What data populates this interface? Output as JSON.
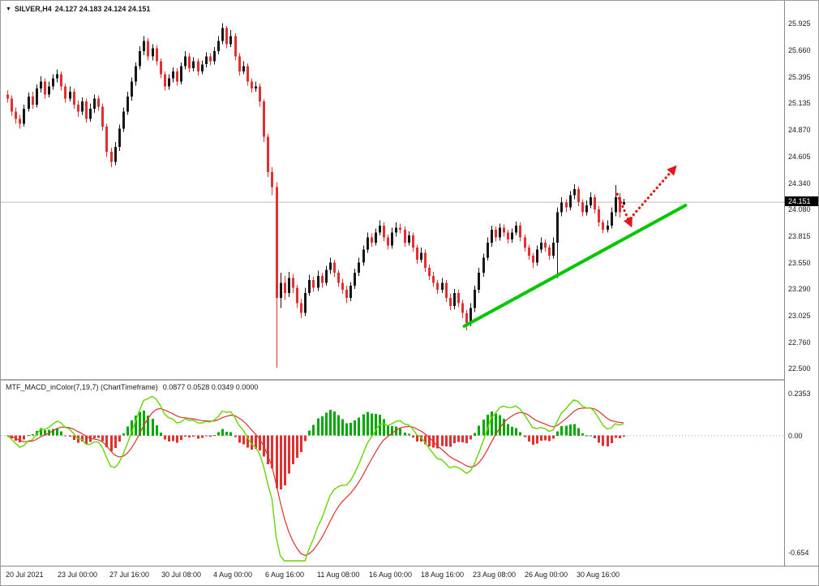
{
  "icons": {
    "dropdown": "▼"
  },
  "colors": {
    "bull": "#161616",
    "bear": "#e03030",
    "trend": "#00c600",
    "arrow": "#e01818",
    "macd_line": "#66d400",
    "signal_line": "#e03030",
    "hist_up": "#00a800",
    "hist_down": "#e03030",
    "current_price_line": "#bdbdbd",
    "tag_bg": "#000000",
    "tag_text": "#ffffff"
  },
  "ui": {
    "quote_header": {
      "symbol": "SILVER,H4",
      "values": "24.127 24.183 24.124 24.151"
    },
    "indicator_header": {
      "title": "MTF_MACD_inColor(7,19,7) (ChartTimeframe)",
      "values": "0.0877 0.0528 0.0349 0.0000"
    },
    "current_price_tag": "24.151"
  },
  "chart_data": [
    {
      "type": "candlestick",
      "title": "SILVER,H4",
      "last_bar_ohlc": {
        "open": 24.127,
        "high": 24.183,
        "low": 24.124,
        "close": 24.151
      },
      "ylim": [
        22.5,
        25.925
      ],
      "yticks": [
        "25.925",
        "25.660",
        "25.395",
        "25.135",
        "24.870",
        "24.605",
        "24.340",
        "24.080",
        "23.815",
        "23.550",
        "23.290",
        "23.025",
        "22.760",
        "22.500"
      ],
      "xticklabels": [
        "20 Jul 2021",
        "23 Jul 00:00",
        "27 Jul 16:00",
        "30 Jul 08:00",
        "4 Aug 00:00",
        "6 Aug 16:00",
        "11 Aug 08:00",
        "16 Aug 00:00",
        "18 Aug 16:00",
        "23 Aug 08:00",
        "26 Aug 00:00",
        "30 Aug 16:00"
      ],
      "ohlc": [
        [
          25.22,
          25.26,
          25.14,
          25.18
        ],
        [
          25.18,
          25.21,
          25.01,
          25.05
        ],
        [
          25.05,
          25.09,
          24.93,
          24.98
        ],
        [
          24.98,
          25.02,
          24.88,
          24.93
        ],
        [
          24.93,
          25.12,
          24.9,
          25.08
        ],
        [
          25.08,
          25.24,
          25.05,
          25.2
        ],
        [
          25.2,
          25.25,
          25.08,
          25.12
        ],
        [
          25.12,
          25.32,
          25.09,
          25.28
        ],
        [
          25.28,
          25.4,
          25.24,
          25.35
        ],
        [
          25.35,
          25.38,
          25.18,
          25.22
        ],
        [
          25.22,
          25.35,
          25.19,
          25.3
        ],
        [
          25.3,
          25.42,
          25.27,
          25.38
        ],
        [
          25.38,
          25.47,
          25.34,
          25.42
        ],
        [
          25.42,
          25.45,
          25.26,
          25.3
        ],
        [
          25.3,
          25.33,
          25.14,
          25.18
        ],
        [
          25.18,
          25.3,
          25.15,
          25.25
        ],
        [
          25.25,
          25.28,
          25.08,
          25.12
        ],
        [
          25.12,
          25.16,
          25.0,
          25.05
        ],
        [
          25.05,
          25.19,
          25.02,
          25.15
        ],
        [
          25.15,
          25.18,
          24.94,
          24.98
        ],
        [
          24.98,
          25.13,
          24.95,
          25.08
        ],
        [
          25.08,
          25.22,
          25.04,
          25.18
        ],
        [
          25.18,
          25.21,
          25.06,
          25.1
        ],
        [
          25.1,
          25.13,
          24.86,
          24.9
        ],
        [
          24.9,
          24.93,
          24.6,
          24.65
        ],
        [
          24.65,
          24.69,
          24.5,
          24.55
        ],
        [
          24.55,
          24.75,
          24.52,
          24.7
        ],
        [
          24.7,
          24.92,
          24.66,
          24.88
        ],
        [
          24.88,
          25.09,
          24.85,
          25.05
        ],
        [
          25.05,
          25.25,
          25.02,
          25.2
        ],
        [
          25.2,
          25.39,
          25.16,
          25.35
        ],
        [
          25.35,
          25.54,
          25.31,
          25.5
        ],
        [
          25.5,
          25.7,
          25.47,
          25.65
        ],
        [
          25.65,
          25.8,
          25.61,
          25.75
        ],
        [
          25.75,
          25.78,
          25.56,
          25.6
        ],
        [
          25.6,
          25.72,
          25.56,
          25.68
        ],
        [
          25.68,
          25.71,
          25.51,
          25.55
        ],
        [
          25.55,
          25.58,
          25.38,
          25.42
        ],
        [
          25.42,
          25.45,
          25.26,
          25.3
        ],
        [
          25.3,
          25.42,
          25.27,
          25.38
        ],
        [
          25.38,
          25.49,
          25.34,
          25.45
        ],
        [
          25.45,
          25.48,
          25.31,
          25.35
        ],
        [
          25.35,
          25.54,
          25.32,
          25.5
        ],
        [
          25.5,
          25.65,
          25.47,
          25.6
        ],
        [
          25.6,
          25.63,
          25.44,
          25.48
        ],
        [
          25.48,
          25.59,
          25.45,
          25.55
        ],
        [
          25.55,
          25.58,
          25.41,
          25.45
        ],
        [
          25.45,
          25.56,
          25.42,
          25.52
        ],
        [
          25.52,
          25.64,
          25.49,
          25.6
        ],
        [
          25.6,
          25.63,
          25.51,
          25.55
        ],
        [
          25.55,
          25.69,
          25.52,
          25.65
        ],
        [
          25.65,
          25.8,
          25.62,
          25.75
        ],
        [
          25.75,
          25.93,
          25.72,
          25.88
        ],
        [
          25.88,
          25.9,
          25.68,
          25.72
        ],
        [
          25.72,
          25.86,
          25.69,
          25.8
        ],
        [
          25.8,
          25.83,
          25.56,
          25.6
        ],
        [
          25.6,
          25.63,
          25.41,
          25.45
        ],
        [
          25.45,
          25.55,
          25.42,
          25.5
        ],
        [
          25.5,
          25.53,
          25.31,
          25.35
        ],
        [
          25.35,
          25.38,
          25.24,
          25.28
        ],
        [
          25.28,
          25.35,
          25.25,
          25.3
        ],
        [
          25.3,
          25.33,
          25.1,
          25.15
        ],
        [
          25.15,
          25.17,
          24.75,
          24.8
        ],
        [
          24.8,
          24.83,
          24.4,
          24.45
        ],
        [
          24.45,
          24.5,
          24.22,
          24.3
        ],
        [
          24.3,
          24.35,
          22.51,
          23.2
        ],
        [
          23.2,
          23.45,
          23.1,
          23.35
        ],
        [
          23.35,
          23.42,
          23.18,
          23.25
        ],
        [
          23.25,
          23.46,
          23.21,
          23.4
        ],
        [
          23.4,
          23.44,
          23.25,
          23.3
        ],
        [
          23.3,
          23.33,
          23.1,
          23.15
        ],
        [
          23.15,
          23.19,
          23.0,
          23.05
        ],
        [
          23.05,
          23.3,
          23.02,
          23.25
        ],
        [
          23.25,
          23.43,
          23.22,
          23.38
        ],
        [
          23.38,
          23.41,
          23.26,
          23.3
        ],
        [
          23.3,
          23.47,
          23.27,
          23.42
        ],
        [
          23.42,
          23.45,
          23.3,
          23.35
        ],
        [
          23.35,
          23.52,
          23.32,
          23.48
        ],
        [
          23.48,
          23.6,
          23.44,
          23.55
        ],
        [
          23.55,
          23.58,
          23.41,
          23.45
        ],
        [
          23.45,
          23.48,
          23.31,
          23.35
        ],
        [
          23.35,
          23.39,
          23.24,
          23.28
        ],
        [
          23.28,
          23.32,
          23.15,
          23.2
        ],
        [
          23.2,
          23.36,
          23.17,
          23.32
        ],
        [
          23.32,
          23.49,
          23.29,
          23.45
        ],
        [
          23.45,
          23.6,
          23.42,
          23.55
        ],
        [
          23.55,
          23.72,
          23.52,
          23.68
        ],
        [
          23.68,
          23.85,
          23.65,
          23.8
        ],
        [
          23.8,
          23.84,
          23.71,
          23.75
        ],
        [
          23.75,
          23.89,
          23.72,
          23.85
        ],
        [
          23.85,
          23.97,
          23.82,
          23.92
        ],
        [
          23.92,
          23.95,
          23.76,
          23.8
        ],
        [
          23.8,
          23.83,
          23.68,
          23.72
        ],
        [
          23.72,
          23.9,
          23.69,
          23.85
        ],
        [
          23.85,
          23.95,
          23.81,
          23.9
        ],
        [
          23.9,
          23.94,
          23.84,
          23.88
        ],
        [
          23.88,
          23.91,
          23.71,
          23.75
        ],
        [
          23.75,
          23.86,
          23.72,
          23.82
        ],
        [
          23.82,
          23.85,
          23.66,
          23.7
        ],
        [
          23.7,
          23.73,
          23.54,
          23.58
        ],
        [
          23.58,
          23.7,
          23.55,
          23.65
        ],
        [
          23.65,
          23.68,
          23.46,
          23.5
        ],
        [
          23.5,
          23.53,
          23.38,
          23.42
        ],
        [
          23.42,
          23.46,
          23.31,
          23.35
        ],
        [
          23.35,
          23.38,
          23.24,
          23.28
        ],
        [
          23.28,
          23.4,
          23.25,
          23.35
        ],
        [
          23.35,
          23.38,
          23.16,
          23.2
        ],
        [
          23.2,
          23.24,
          23.08,
          23.12
        ],
        [
          23.12,
          23.29,
          23.09,
          23.25
        ],
        [
          23.25,
          23.28,
          23.11,
          23.15
        ],
        [
          23.15,
          23.18,
          23.0,
          23.05
        ],
        [
          23.05,
          23.08,
          22.88,
          22.95
        ],
        [
          22.95,
          23.15,
          22.92,
          23.1
        ],
        [
          23.1,
          23.32,
          23.06,
          23.28
        ],
        [
          23.28,
          23.5,
          23.25,
          23.45
        ],
        [
          23.45,
          23.64,
          23.41,
          23.6
        ],
        [
          23.6,
          23.8,
          23.57,
          23.75
        ],
        [
          23.75,
          23.92,
          23.71,
          23.88
        ],
        [
          23.88,
          23.91,
          23.76,
          23.8
        ],
        [
          23.8,
          23.94,
          23.77,
          23.9
        ],
        [
          23.9,
          23.93,
          23.81,
          23.85
        ],
        [
          23.85,
          23.88,
          23.74,
          23.78
        ],
        [
          23.78,
          23.89,
          23.75,
          23.85
        ],
        [
          23.85,
          23.96,
          23.82,
          23.92
        ],
        [
          23.92,
          23.95,
          23.76,
          23.8
        ],
        [
          23.8,
          23.83,
          23.66,
          23.7
        ],
        [
          23.7,
          23.73,
          23.58,
          23.62
        ],
        [
          23.62,
          23.65,
          23.5,
          23.55
        ],
        [
          23.55,
          23.72,
          23.52,
          23.68
        ],
        [
          23.68,
          23.8,
          23.65,
          23.75
        ],
        [
          23.75,
          23.78,
          23.66,
          23.7
        ],
        [
          23.7,
          23.73,
          23.58,
          23.62
        ],
        [
          23.62,
          23.8,
          23.59,
          23.75
        ],
        [
          23.75,
          24.1,
          23.4,
          24.05
        ],
        [
          24.05,
          24.2,
          24.01,
          24.15
        ],
        [
          24.15,
          24.18,
          24.05,
          24.1
        ],
        [
          24.1,
          24.26,
          24.07,
          24.22
        ],
        [
          24.22,
          24.33,
          24.18,
          24.28
        ],
        [
          24.28,
          24.31,
          24.11,
          24.15
        ],
        [
          24.15,
          24.18,
          24.01,
          24.05
        ],
        [
          24.05,
          24.17,
          24.02,
          24.12
        ],
        [
          24.12,
          24.25,
          24.09,
          24.2
        ],
        [
          24.2,
          24.23,
          24.04,
          24.08
        ],
        [
          24.08,
          24.11,
          23.91,
          23.95
        ],
        [
          23.95,
          23.98,
          23.84,
          23.88
        ],
        [
          23.88,
          23.97,
          23.85,
          23.92
        ],
        [
          23.92,
          24.1,
          23.89,
          24.05
        ],
        [
          24.05,
          24.32,
          24.01,
          24.2
        ],
        [
          24.2,
          24.24,
          24.0,
          24.05
        ],
        [
          24.127,
          24.183,
          24.124,
          24.151
        ]
      ],
      "annotations": {
        "current_price_line": 24.151,
        "trendline": {
          "shape": "line",
          "color_key": "trend",
          "points_index_price": [
            [
              110.5,
              22.92
            ],
            [
              164.0,
              24.12
            ]
          ]
        },
        "arrow": {
          "shape": "dotted-arrow",
          "color_key": "arrow",
          "segments_index_price": [
            [
              [
                147.5,
                24.23
              ],
              [
                150.8,
                23.92
              ]
            ],
            [
              [
                150.0,
                23.96
              ],
              [
                161.5,
                24.5
              ]
            ]
          ]
        }
      }
    },
    {
      "type": "bar",
      "name": "MTF_MACD_inColor(7,19,7)",
      "subtitle": "(ChartTimeframe)",
      "display_values": [
        0.0877,
        0.0528,
        0.0349,
        0.0
      ],
      "yticks": [
        "0.2353",
        "0.00",
        "-0.654"
      ],
      "ylim": [
        -0.7,
        0.28
      ],
      "zero_line": 0.0,
      "derivation": "histogram = MACD(EMA7-EMA19) minus signal EMA7; green line = MACD, red line = signal; computed from candlestick closes above"
    }
  ]
}
